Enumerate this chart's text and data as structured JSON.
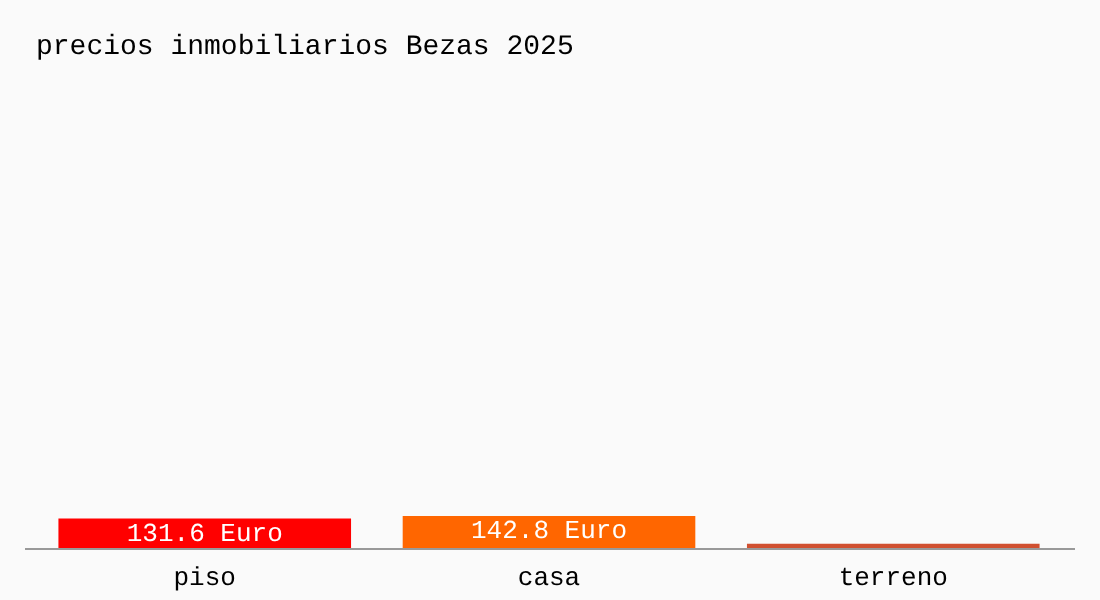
{
  "chart_data": {
    "type": "bar",
    "title": "precios inmobiliarios Bezas 2025",
    "categories": [
      "piso",
      "casa",
      "terreno"
    ],
    "values": [
      131.6,
      142.8,
      19.4
    ],
    "colors": [
      "#ff0000",
      "#ff6600",
      "#d05030"
    ],
    "value_labels": [
      "131.6 Euro",
      "142.8 Euro",
      null
    ]
  }
}
